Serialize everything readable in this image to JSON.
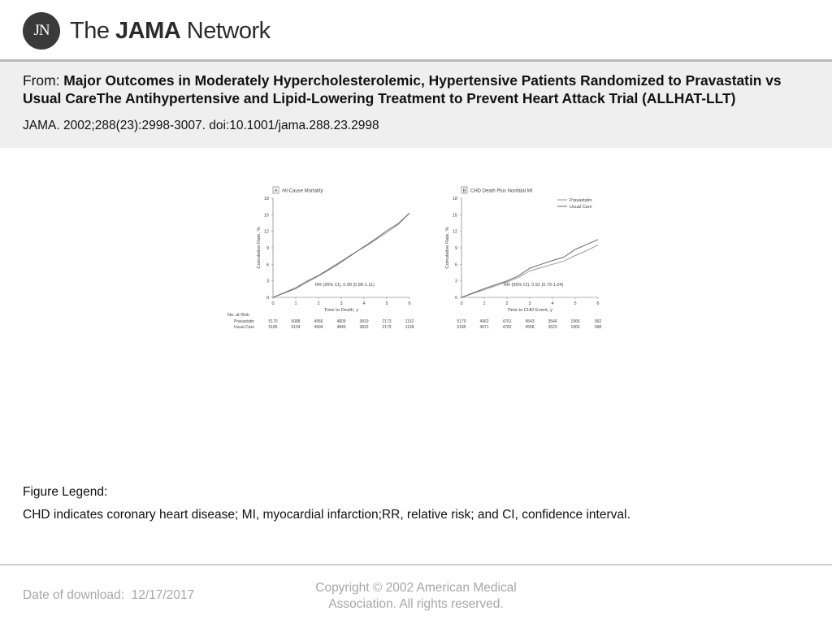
{
  "brand": {
    "monogram": "JN",
    "prefix": "The",
    "bold": "JAMA",
    "suffix": "Network"
  },
  "header": {
    "from_label": "From:",
    "title": "Major Outcomes in Moderately Hypercholesterolemic, Hypertensive Patients Randomized to Pravastatin vs Usual CareThe Antihypertensive and Lipid-Lowering Treatment to Prevent Heart Attack Trial (ALLHAT-LLT)",
    "citation": "JAMA. 2002;288(23):2998-3007. doi:10.1001/jama.288.23.2998"
  },
  "legend": {
    "heading": "Figure Legend:",
    "text": "CHD indicates coronary heart disease; MI, myocardial infarction;RR, relative risk; and CI, confidence interval."
  },
  "footer": {
    "download_label": "Date of download:",
    "download_date": "12/17/2017",
    "copyright_line1": "Copyright © 2002 American Medical",
    "copyright_line2": "Association. All rights reserved."
  },
  "risk_table": {
    "title": "No. at Risk",
    "row_labels": [
      "Pravastatin",
      "Usual Care"
    ]
  },
  "chart_data": [
    {
      "type": "line",
      "panel": "A",
      "title": "All-Cause Mortality",
      "xlabel": "Time to Death, y",
      "ylabel": "Cumulative Rate, %",
      "xlim": [
        0,
        6
      ],
      "ylim": [
        0,
        18
      ],
      "xticks": [
        0,
        1,
        2,
        3,
        4,
        5,
        6
      ],
      "yticks": [
        0,
        3,
        6,
        9,
        12,
        15,
        18
      ],
      "annotation": "RR (95% CI), 0.99 (0.89-1.11)",
      "series": [
        {
          "name": "Pravastatin",
          "color": "#9a9a9a",
          "x": [
            0,
            0.5,
            1,
            1.5,
            2,
            2.5,
            3,
            3.5,
            4,
            4.5,
            5,
            5.5,
            6
          ],
          "y": [
            0,
            0.9,
            1.8,
            3.0,
            4.0,
            5.3,
            6.6,
            7.9,
            9.1,
            10.4,
            11.8,
            13.2,
            15.3
          ]
        },
        {
          "name": "Usual Care",
          "color": "#6a6a6a",
          "x": [
            0,
            0.5,
            1,
            1.5,
            2,
            2.5,
            3,
            3.5,
            4,
            4.5,
            5,
            5.5,
            6
          ],
          "y": [
            0,
            0.8,
            1.6,
            2.8,
            3.9,
            5.1,
            6.4,
            7.8,
            9.2,
            10.6,
            12.1,
            13.4,
            15.3
          ]
        }
      ],
      "at_risk": {
        "times": [
          0,
          1,
          2,
          3,
          4,
          5,
          6
        ],
        "pravastatin": [
          5170,
          5088,
          4956,
          4809,
          3819,
          2173,
          1132
        ],
        "usual_care": [
          5185,
          5104,
          4994,
          4845,
          3832,
          2179,
          1138
        ]
      }
    },
    {
      "type": "line",
      "panel": "B",
      "title": "CHD Death Plus Nonfatal MI",
      "xlabel": "Time to CHD Event, y",
      "ylabel": "Cumulative Rate, %",
      "xlim": [
        0,
        6
      ],
      "ylim": [
        0,
        18
      ],
      "xticks": [
        0,
        1,
        2,
        3,
        4,
        5,
        6
      ],
      "yticks": [
        0,
        3,
        6,
        9,
        12,
        15,
        18
      ],
      "annotation": "RR (95% CI), 0.91 (0.79-1.04)",
      "legend_position": "top-right",
      "series": [
        {
          "name": "Pravastatin",
          "color": "#9a9a9a",
          "x": [
            0,
            0.5,
            1,
            1.5,
            2,
            2.5,
            3,
            3.5,
            4,
            4.5,
            5,
            5.5,
            6
          ],
          "y": [
            0,
            0.7,
            1.4,
            2.1,
            2.8,
            3.6,
            4.8,
            5.4,
            6.0,
            6.6,
            7.6,
            8.5,
            9.5
          ]
        },
        {
          "name": "Usual Care",
          "color": "#6a6a6a",
          "x": [
            0,
            0.5,
            1,
            1.5,
            2,
            2.5,
            3,
            3.5,
            4,
            4.5,
            5,
            5.5,
            6
          ],
          "y": [
            0,
            0.8,
            1.6,
            2.3,
            3.0,
            3.9,
            5.3,
            6.0,
            6.7,
            7.3,
            8.7,
            9.6,
            10.5
          ]
        }
      ],
      "at_risk": {
        "times": [
          0,
          1,
          2,
          3,
          4,
          5,
          6
        ],
        "pravastatin": [
          5170,
          4962,
          4761,
          4543,
          3546,
          1966,
          992
        ],
        "usual_care": [
          5185,
          4971,
          4782,
          4558,
          3523,
          1960,
          998
        ]
      }
    }
  ]
}
